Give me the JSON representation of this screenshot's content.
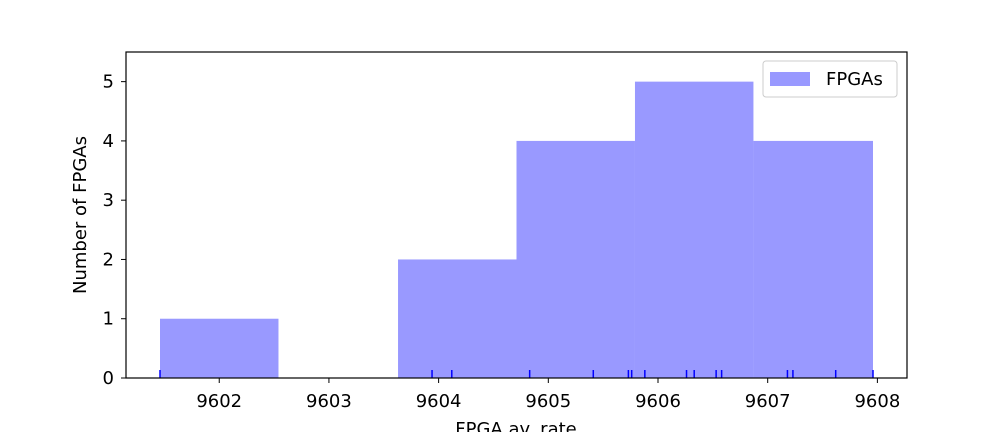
{
  "chart_data": {
    "type": "bar",
    "subtype": "histogram",
    "xlabel": "FPGA av. rate",
    "ylabel": "Number of FPGAs",
    "xlim": [
      9601.15,
      9608.27
    ],
    "ylim": [
      0,
      5.5
    ],
    "x_ticks": [
      "9602",
      "9603",
      "9604",
      "9605",
      "9606",
      "9607",
      "9608"
    ],
    "x_tick_values": [
      9602,
      9603,
      9604,
      9605,
      9606,
      9607,
      9608
    ],
    "y_ticks": [
      "0",
      "1",
      "2",
      "3",
      "4",
      "5"
    ],
    "y_tick_values": [
      0,
      1,
      2,
      3,
      4,
      5
    ],
    "bins": [
      {
        "start": 9601.46,
        "end": 9602.54,
        "count": 1
      },
      {
        "start": 9602.54,
        "end": 9603.63,
        "count": 0
      },
      {
        "start": 9603.63,
        "end": 9604.71,
        "count": 2
      },
      {
        "start": 9604.71,
        "end": 9605.79,
        "count": 4
      },
      {
        "start": 9605.79,
        "end": 9606.87,
        "count": 5
      },
      {
        "start": 9606.87,
        "end": 9607.96,
        "count": 4
      }
    ],
    "rug": [
      9601.46,
      9603.94,
      9604.12,
      9604.83,
      9605.41,
      9605.73,
      9605.76,
      9605.88,
      9606.26,
      9606.33,
      9606.53,
      9606.58,
      9607.18,
      9607.23,
      9607.62,
      9607.96
    ],
    "legend": {
      "label": "FPGAs",
      "position": "upper right"
    },
    "colors": {
      "bars": "#9999ff",
      "rug": "#0000ff",
      "axes": "#000000"
    },
    "grid": false
  }
}
